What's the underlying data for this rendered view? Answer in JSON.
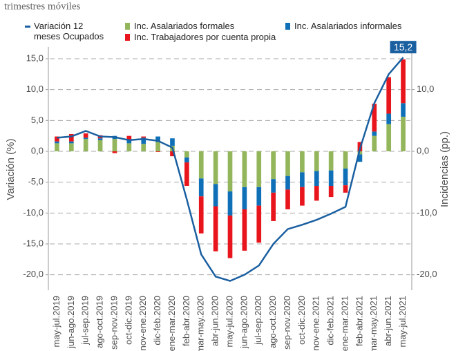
{
  "chart_data": {
    "type": "bar",
    "subtitle": "trimestres móviles",
    "y_label": "Variación (%)",
    "y2_label": "Incidencias (pp.)",
    "categories": [
      "may-jul.2019",
      "jun-ago.2019",
      "jul-sep.2019",
      "ago-oct.2019",
      "sep-nov.2019",
      "oct-dic.2019",
      "nov-ene.2020",
      "dic-feb.2020",
      "ene-mar.2020",
      "feb-abr.2020",
      "mar-may.2020",
      "abr-jun.2020",
      "may-jul.2020",
      "jun-ago.2020",
      "jul-sep.2020",
      "ago-oct.2020",
      "sep-nov.2020",
      "oct-dic.2020",
      "nov-ene.2021",
      "dic-feb.2021",
      "ene-mar.2021",
      "feb-abr.2021",
      "mar-may.2021",
      "abr-jun.2021",
      "may-jul.2021"
    ],
    "series": [
      {
        "name": "Inc. Asalariados formales",
        "color": "#93b65c",
        "axis": "y2",
        "values": [
          1.3,
          1.3,
          2.0,
          1.8,
          2.0,
          1.3,
          1.2,
          1.5,
          0.9,
          -1.0,
          -4.4,
          -5.3,
          -6.5,
          -5.8,
          -5.8,
          -4.5,
          -4.0,
          -3.4,
          -3.2,
          -3.1,
          -2.8,
          -0.5,
          2.5,
          4.4,
          5.6
        ]
      },
      {
        "name": "Inc. Asalariados informales",
        "color": "#0f70b7",
        "axis": "y2",
        "values": [
          0.3,
          0.3,
          0.2,
          0.3,
          0.5,
          0.5,
          1.0,
          0.9,
          1.2,
          -0.8,
          -2.9,
          -3.6,
          -3.9,
          -3.6,
          -3.0,
          -2.2,
          -2.2,
          -2.4,
          -2.4,
          -2.5,
          -2.7,
          -1.2,
          0.7,
          1.7,
          2.2
        ]
      },
      {
        "name": "Inc. Trabajadores por cuenta propia",
        "color": "#e8161c",
        "axis": "y2",
        "values": [
          0.8,
          1.2,
          0.7,
          0.5,
          -0.3,
          0.7,
          0.2,
          -0.1,
          -0.8,
          -3.8,
          -6.0,
          -7.3,
          -6.9,
          -6.7,
          -6.0,
          -4.6,
          -3.2,
          -3.0,
          -2.4,
          -1.8,
          -1.2,
          1.5,
          4.5,
          5.9,
          7.1
        ]
      },
      {
        "name": "Variación 12 meses Ocupados",
        "color": "#1a5fa0",
        "type": "line",
        "values": [
          2.2,
          2.4,
          3.3,
          2.4,
          2.3,
          1.8,
          2.0,
          1.7,
          0.6,
          -7.8,
          -16.7,
          -20.3,
          -21.0,
          -20.0,
          -18.5,
          -15.0,
          -12.6,
          -11.9,
          -11.1,
          -10.1,
          -9.0,
          0.4,
          7.8,
          12.5,
          15.2
        ],
        "value_labels": [
          null,
          null,
          null,
          null,
          null,
          null,
          null,
          null,
          null,
          null,
          null,
          null,
          null,
          null,
          null,
          null,
          null,
          null,
          null,
          null,
          null,
          null,
          null,
          null,
          "15,2"
        ]
      }
    ],
    "legend_order": [
      3,
      0,
      2,
      1
    ],
    "ylim": [
      -22.5,
      16.9
    ],
    "yticks": [
      {
        "value": 15,
        "label": "15,0"
      },
      {
        "value": 10,
        "label": "10,0"
      },
      {
        "value": 5,
        "label": "5,0"
      },
      {
        "value": 0,
        "label": "0,0"
      },
      {
        "value": -5,
        "label": "-5,0"
      },
      {
        "value": -10,
        "label": "-10,0"
      },
      {
        "value": -15,
        "label": "-15,0"
      },
      {
        "value": -20,
        "label": "-20,0"
      }
    ],
    "y2lim": [
      -22.5,
      16.9
    ],
    "y2ticks": [
      {
        "value": 10,
        "label": "10,0"
      },
      {
        "value": 0,
        "label": "0,0"
      },
      {
        "value": -10,
        "label": "-10,0"
      },
      {
        "value": -20,
        "label": "-20,0"
      }
    ],
    "grid": true
  }
}
